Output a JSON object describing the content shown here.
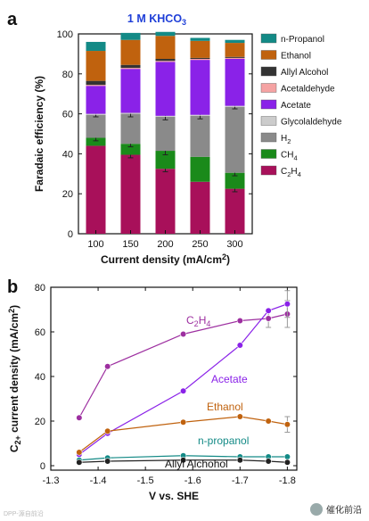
{
  "panels": {
    "a": {
      "letter": "a"
    },
    "b": {
      "letter": "b"
    }
  },
  "watermark": {
    "text": "催化前沿"
  },
  "source_note": {
    "text": "DPP-源自前沿"
  },
  "chart_data": [
    {
      "type": "bar",
      "stacked": true,
      "title_main": "1 M KHCO",
      "title_sub": "3",
      "xlabel": "Current density (mA/cm",
      "xlabel_sup": "2",
      "xlabel_end": ")",
      "ylabel": "Faradaic efficiency (%)",
      "ylim": [
        0,
        100
      ],
      "yticks": [
        "0",
        "20",
        "40",
        "60",
        "80",
        "100"
      ],
      "categories": [
        "100",
        "150",
        "200",
        "250",
        "300"
      ],
      "legend_position": "right",
      "series": [
        {
          "name": "C2H4",
          "label_main": "C",
          "label_sub1": "2",
          "label_mid": "H",
          "label_sub2": "4",
          "color": "#a8105a",
          "values": [
            44,
            39.5,
            32.5,
            26,
            22.5
          ],
          "err": [
            0,
            1.5,
            1.5,
            0,
            1.5
          ]
        },
        {
          "name": "CH4",
          "label_main": "CH",
          "label_sub1": "4",
          "label_mid": "",
          "label_sub2": "",
          "color": "#1a8a1a",
          "values": [
            4,
            5.5,
            9,
            12.5,
            8
          ],
          "err": [
            1.5,
            1.5,
            2,
            0,
            1.5
          ]
        },
        {
          "name": "H2",
          "label_main": "H",
          "label_sub1": "2",
          "label_mid": "",
          "label_sub2": "",
          "color": "#8a8a8a",
          "values": [
            11.5,
            15,
            17,
            20.5,
            33
          ],
          "err": [
            1,
            1.5,
            1.5,
            1.5,
            1
          ]
        },
        {
          "name": "Glycolaldehyde",
          "label_main": "Glycolaldehyde",
          "label_sub1": "",
          "label_mid": "",
          "label_sub2": "",
          "color": "#cccccc",
          "values": [
            0.5,
            0.5,
            0.5,
            0.5,
            0.5
          ],
          "err": [
            0,
            0,
            0,
            0,
            0
          ]
        },
        {
          "name": "Acetate",
          "label_main": "Acetate",
          "label_sub1": "",
          "label_mid": "",
          "label_sub2": "",
          "color": "#8a22e8",
          "values": [
            14,
            22,
            27,
            27.5,
            23.5
          ],
          "err": [
            0,
            0,
            0,
            0,
            0
          ]
        },
        {
          "name": "Acetaldehyde",
          "label_main": "Acetaldehyde",
          "label_sub1": "",
          "label_mid": "",
          "label_sub2": "",
          "color": "#f5a3a3",
          "values": [
            0.5,
            0.5,
            0.5,
            0.5,
            0.5
          ],
          "err": [
            0,
            0,
            0,
            0,
            0
          ]
        },
        {
          "name": "Allyl Alcohol",
          "label_main": "Allyl Alcohol",
          "label_sub1": "",
          "label_mid": "",
          "label_sub2": "",
          "color": "#333333",
          "values": [
            2,
            1.5,
            1,
            0.5,
            0.5
          ],
          "err": [
            0,
            0,
            0,
            0,
            0
          ]
        },
        {
          "name": "Ethanol",
          "label_main": "Ethanol",
          "label_sub1": "",
          "label_mid": "",
          "label_sub2": "",
          "color": "#c0620e",
          "values": [
            15,
            12.5,
            11.5,
            8.5,
            7
          ],
          "err": [
            0,
            0,
            0,
            0,
            0
          ]
        },
        {
          "name": "n-Propanol",
          "label_main": "n-Propanol",
          "label_sub1": "",
          "label_mid": "",
          "label_sub2": "",
          "color": "#138a86",
          "values": [
            4.5,
            3.5,
            2,
            1.5,
            1.5
          ],
          "err": [
            0,
            0,
            0,
            0,
            0
          ]
        }
      ]
    },
    {
      "type": "line",
      "xlabel": "V vs. SHE",
      "ylabel_main": "C",
      "ylabel_sub": "2+",
      "ylabel_rest": " current density (mA/cm",
      "ylabel_sup": "2",
      "ylabel_end": ")",
      "xlim": [
        -1.3,
        -1.82
      ],
      "ylim": [
        -2,
        80
      ],
      "xticks": [
        "-1.3",
        "-1.4",
        "-1.5",
        "-1.6",
        "-1.7",
        "-1.8"
      ],
      "yticks": [
        "0",
        "20",
        "40",
        "60",
        "80"
      ],
      "x": [
        -1.36,
        -1.42,
        -1.58,
        -1.7,
        -1.76,
        -1.8
      ],
      "series": [
        {
          "name": "C2H4",
          "label_main": "C",
          "label_sub1": "2",
          "label_mid": "H",
          "label_sub2": "4",
          "color": "#9d2fa0",
          "values": [
            21.5,
            44.5,
            59,
            65,
            66,
            68
          ],
          "err": [
            0,
            0,
            0,
            0,
            4,
            6
          ]
        },
        {
          "name": "Acetate",
          "label_main": "Acetate",
          "label_sub1": "",
          "label_mid": "",
          "label_sub2": "",
          "color": "#8a22e8",
          "values": [
            5,
            14.5,
            33.5,
            54,
            69.5,
            72.5
          ],
          "err": [
            0,
            0,
            0,
            0,
            0,
            6
          ]
        },
        {
          "name": "Ethanol",
          "label_main": "Ethanol",
          "label_sub1": "",
          "label_mid": "",
          "label_sub2": "",
          "color": "#c0620e",
          "values": [
            6,
            15.5,
            19.5,
            22,
            20,
            18.5
          ],
          "err": [
            0,
            0,
            0,
            0,
            0,
            3.5
          ]
        },
        {
          "name": "n-propanol",
          "label_main": "n-propanol",
          "label_sub1": "",
          "label_mid": "",
          "label_sub2": "",
          "color": "#138a86",
          "values": [
            2.5,
            3.5,
            4.5,
            4,
            4,
            4
          ],
          "err": [
            0,
            0,
            0,
            0,
            0,
            0
          ]
        },
        {
          "name": "Allyl Alchohol",
          "label_main": "Allyl Alchohol",
          "label_sub1": "",
          "label_mid": "",
          "label_sub2": "",
          "color": "#222222",
          "values": [
            1.5,
            2,
            2.5,
            2.5,
            2,
            1.5
          ],
          "err": [
            0,
            0,
            0,
            0,
            0,
            0
          ]
        }
      ]
    }
  ]
}
